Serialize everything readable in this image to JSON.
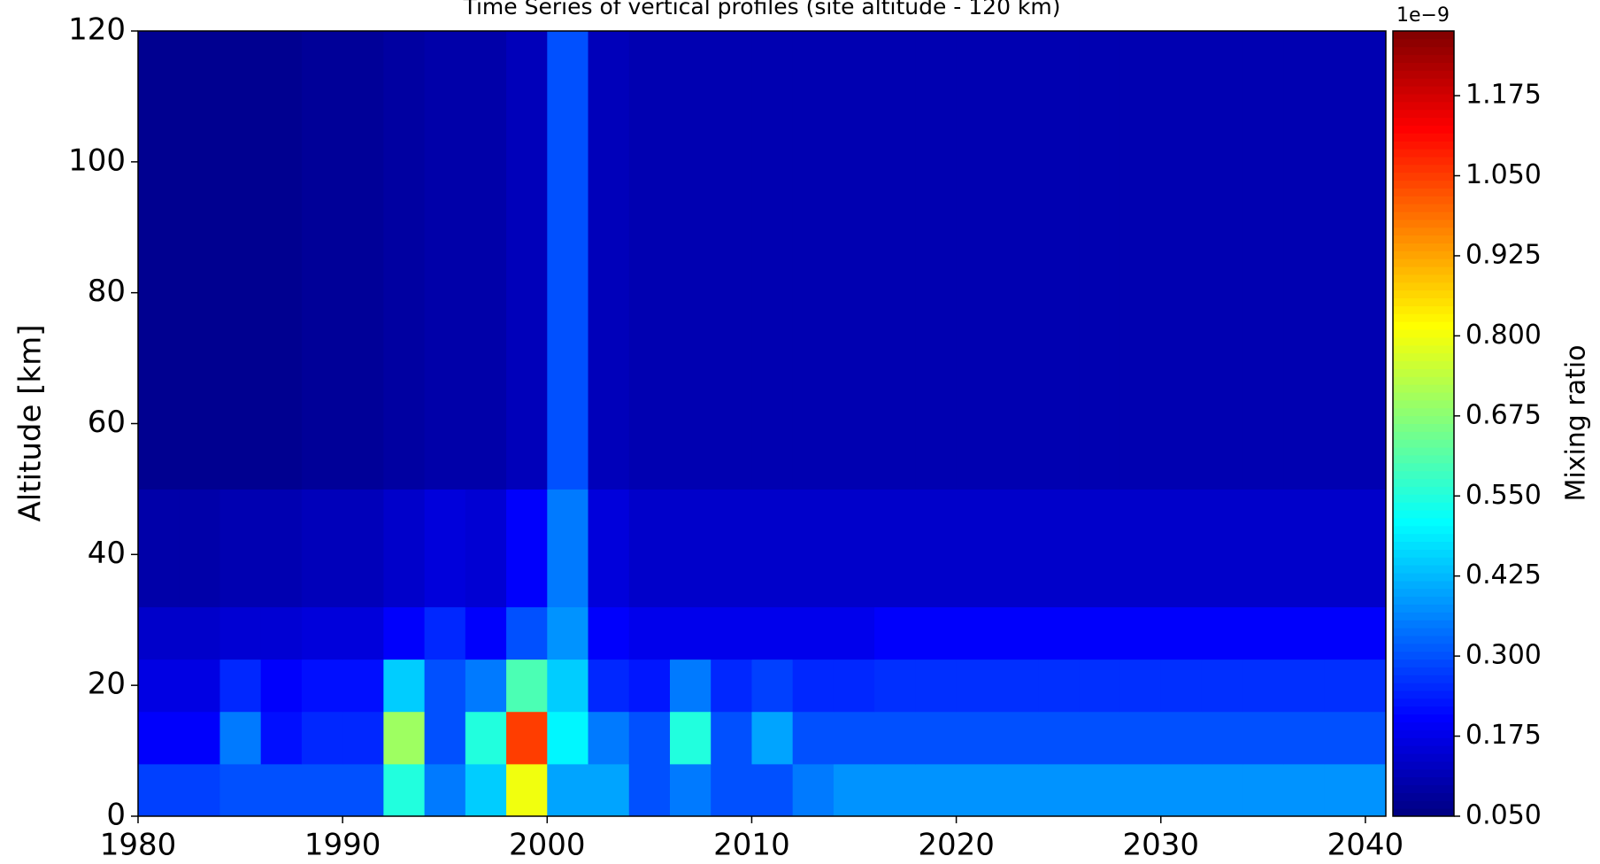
{
  "chart_data": {
    "type": "heatmap",
    "title": "Time Series of vertical profiles (site altitude - 120 km)",
    "ylabel": "Altitude [km]",
    "colorbar_label": "Mixing ratio",
    "colorbar_offset": "1e−9",
    "colormap": "jet",
    "xlim": [
      1980,
      2041
    ],
    "ylim": [
      0,
      120
    ],
    "xticks": [
      1980,
      1990,
      2000,
      2010,
      2020,
      2030,
      2040
    ],
    "yticks": [
      0,
      20,
      40,
      60,
      80,
      100,
      120
    ],
    "clim": [
      0.05,
      1.276
    ],
    "cticks": [
      {
        "value": 0.05,
        "label": "0.050"
      },
      {
        "value": 0.175,
        "label": "0.175"
      },
      {
        "value": 0.3,
        "label": "0.300"
      },
      {
        "value": 0.425,
        "label": "0.425"
      },
      {
        "value": 0.55,
        "label": "0.550"
      },
      {
        "value": 0.675,
        "label": "0.675"
      },
      {
        "value": 0.8,
        "label": "0.800"
      },
      {
        "value": 0.925,
        "label": "0.925"
      },
      {
        "value": 1.05,
        "label": "1.050"
      },
      {
        "value": 1.175,
        "label": "1.175"
      }
    ],
    "x_edges": [
      1980,
      1982,
      1984,
      1986,
      1988,
      1990,
      1992,
      1994,
      1996,
      1998,
      2000,
      2002,
      2004,
      2006,
      2008,
      2010,
      2012,
      2014,
      2016,
      2018,
      2020,
      2022,
      2024,
      2026,
      2028,
      2030,
      2032,
      2034,
      2036,
      2038,
      2040,
      2041
    ],
    "y_edges": [
      0,
      8,
      16,
      24,
      32,
      50,
      120
    ],
    "z": [
      [
        0.28,
        0.28,
        0.3,
        0.3,
        0.3,
        0.3,
        0.55,
        0.35,
        0.45,
        0.8,
        0.4,
        0.4,
        0.3,
        0.35,
        0.3,
        0.3,
        0.35,
        0.38,
        0.38,
        0.38,
        0.38,
        0.38,
        0.38,
        0.38,
        0.38,
        0.38,
        0.38,
        0.38,
        0.38,
        0.38,
        0.38
      ],
      [
        0.2,
        0.2,
        0.35,
        0.22,
        0.25,
        0.25,
        0.7,
        0.3,
        0.55,
        1.05,
        0.5,
        0.35,
        0.3,
        0.55,
        0.3,
        0.4,
        0.3,
        0.3,
        0.3,
        0.3,
        0.3,
        0.3,
        0.3,
        0.3,
        0.3,
        0.3,
        0.3,
        0.3,
        0.3,
        0.3,
        0.3
      ],
      [
        0.17,
        0.17,
        0.25,
        0.2,
        0.22,
        0.22,
        0.45,
        0.3,
        0.35,
        0.6,
        0.45,
        0.25,
        0.23,
        0.35,
        0.25,
        0.28,
        0.25,
        0.25,
        0.26,
        0.26,
        0.26,
        0.26,
        0.26,
        0.26,
        0.26,
        0.26,
        0.26,
        0.26,
        0.26,
        0.26,
        0.26
      ],
      [
        0.14,
        0.14,
        0.15,
        0.15,
        0.16,
        0.16,
        0.2,
        0.25,
        0.2,
        0.3,
        0.38,
        0.2,
        0.18,
        0.18,
        0.18,
        0.18,
        0.18,
        0.18,
        0.2,
        0.2,
        0.2,
        0.2,
        0.2,
        0.2,
        0.2,
        0.2,
        0.2,
        0.2,
        0.2,
        0.2,
        0.2
      ],
      [
        0.1,
        0.1,
        0.11,
        0.11,
        0.12,
        0.12,
        0.14,
        0.16,
        0.15,
        0.2,
        0.35,
        0.16,
        0.14,
        0.14,
        0.14,
        0.14,
        0.14,
        0.14,
        0.14,
        0.14,
        0.14,
        0.14,
        0.14,
        0.14,
        0.14,
        0.14,
        0.14,
        0.14,
        0.14,
        0.14,
        0.14
      ],
      [
        0.07,
        0.07,
        0.07,
        0.07,
        0.08,
        0.08,
        0.09,
        0.1,
        0.1,
        0.12,
        0.3,
        0.12,
        0.11,
        0.11,
        0.11,
        0.11,
        0.11,
        0.11,
        0.11,
        0.11,
        0.11,
        0.11,
        0.11,
        0.11,
        0.11,
        0.11,
        0.11,
        0.11,
        0.11,
        0.11,
        0.11
      ]
    ]
  }
}
